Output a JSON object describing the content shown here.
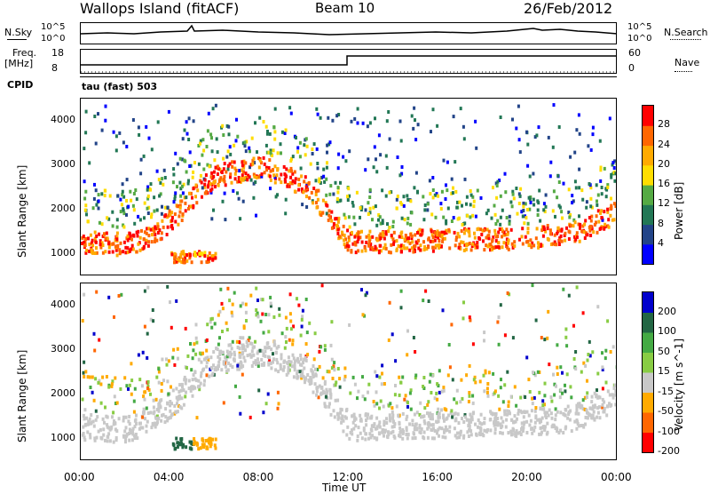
{
  "header": {
    "station": "Wallops Island (fitACF)",
    "beam": "Beam 10",
    "date": "26/Feb/2012"
  },
  "strips": {
    "nsky_label": "N.Sky",
    "nsearch_label": "N.Search",
    "noise_ticks": [
      "10^5",
      "10^0"
    ],
    "freq_label": "Freq.",
    "freq_unit": "[MHz]",
    "freq_ticks": [
      "18",
      "8"
    ],
    "nave_label": "Nave",
    "nave_ticks": [
      "60",
      "0"
    ],
    "cpid_label": "CPID",
    "cpid_value": "tau (fast) 503"
  },
  "chart_data": [
    {
      "type": "heatmap",
      "panel": "power",
      "xlabel": "Time UT",
      "ylabel": "Slant Range [km]",
      "x_ticks": [
        "00:00",
        "04:00",
        "08:00",
        "12:00",
        "16:00",
        "20:00",
        "00:00"
      ],
      "y_ticks": [
        "1000",
        "2000",
        "3000",
        "4000"
      ],
      "ylim": [
        500,
        4500
      ],
      "colorbar": {
        "label": "Power [dB]",
        "ticks": [
          "28",
          "24",
          "20",
          "16",
          "12",
          "8",
          "4"
        ],
        "colors": [
          "#ff0000",
          "#ff6600",
          "#ffaa00",
          "#ffdd00",
          "#55aa44",
          "#227755",
          "#224488",
          "#0000ff"
        ]
      },
      "main_echo_band_km": [
        [
          0,
          1300
        ],
        [
          2,
          1250
        ],
        [
          3,
          1400
        ],
        [
          4,
          1800
        ],
        [
          5,
          2300
        ],
        [
          6,
          2800
        ],
        [
          8,
          3000
        ],
        [
          10,
          2600
        ],
        [
          12,
          1300
        ],
        [
          16,
          1350
        ],
        [
          20,
          1400
        ],
        [
          22,
          1500
        ],
        [
          24,
          2000
        ]
      ]
    },
    {
      "type": "heatmap",
      "panel": "velocity",
      "xlabel": "Time UT",
      "ylabel": "Slant Range [km]",
      "x_ticks": [
        "00:00",
        "04:00",
        "08:00",
        "12:00",
        "16:00",
        "20:00",
        "00:00"
      ],
      "y_ticks": [
        "1000",
        "2000",
        "3000",
        "4000"
      ],
      "ylim": [
        500,
        4500
      ],
      "colorbar": {
        "label": "Velocity [m s^-1]",
        "ticks": [
          "200",
          "100",
          "50",
          "15",
          "-15",
          "-50",
          "-100",
          "-200"
        ],
        "colors": [
          "#0000cc",
          "#226644",
          "#44aa44",
          "#88cc44",
          "#c8c8c8",
          "#ffaa00",
          "#ff6600",
          "#ff0000"
        ]
      }
    }
  ]
}
